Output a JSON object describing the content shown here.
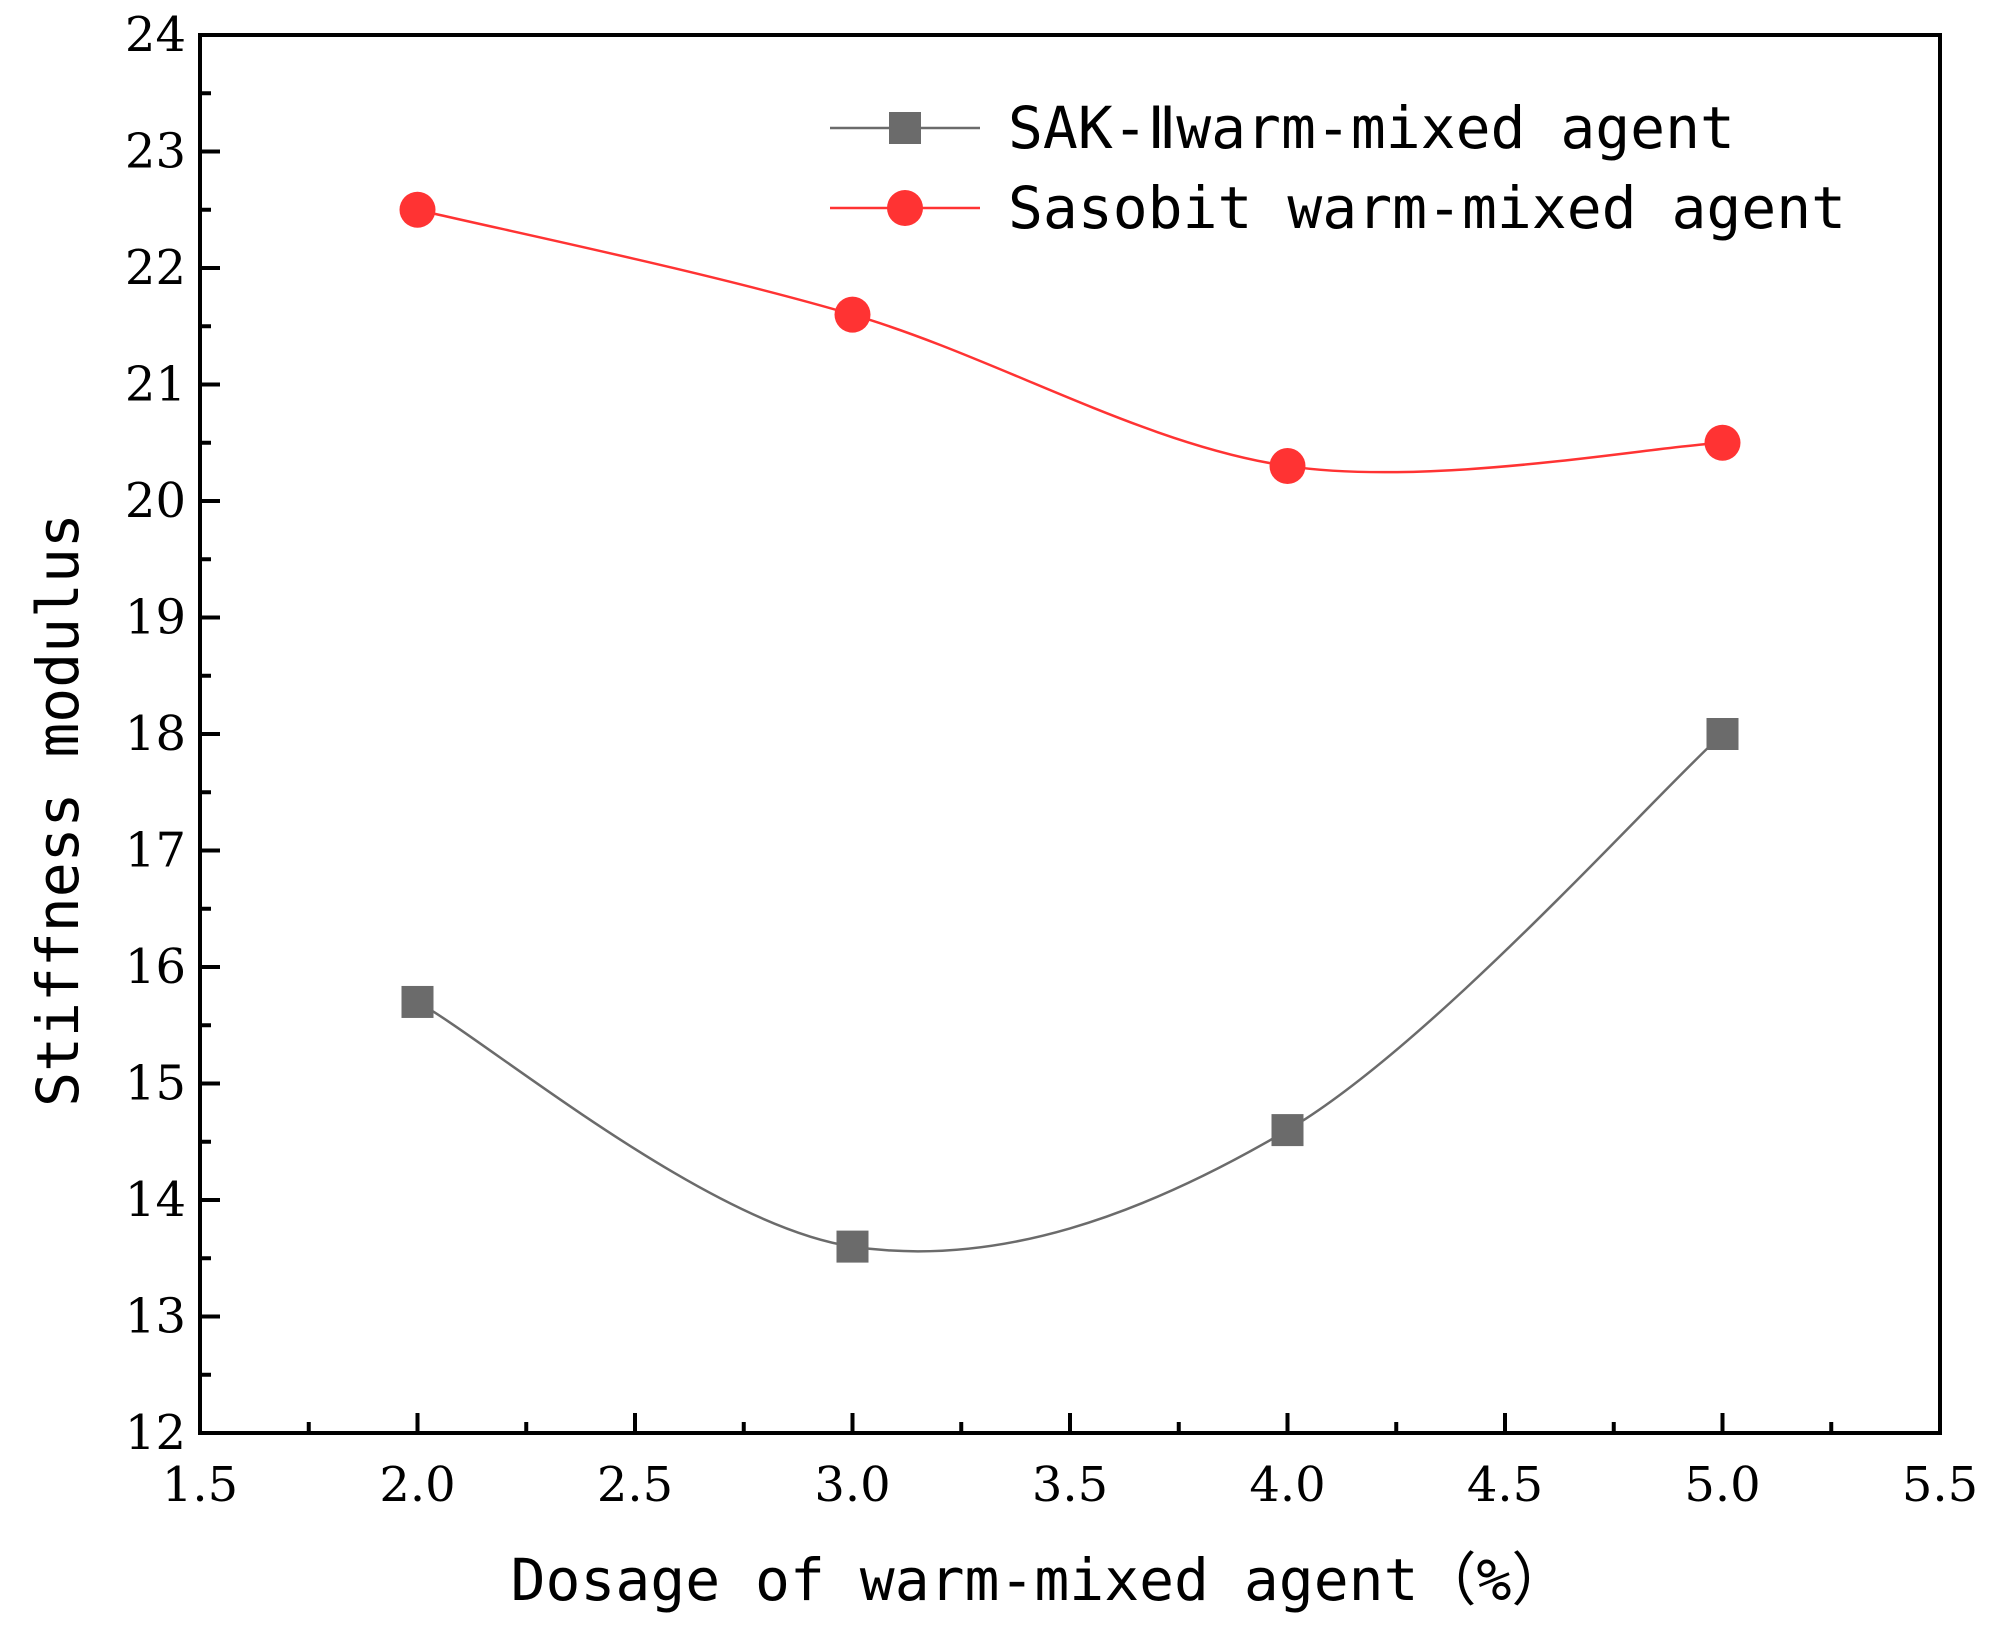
{
  "chart_data": {
    "type": "line",
    "title": "",
    "xlabel": "Dosage of warm-mixed agent（%）",
    "ylabel": "Stiffness modulus",
    "xlim": [
      1.5,
      5.5
    ],
    "ylim": [
      12,
      24
    ],
    "xticks": [
      "1.5",
      "2.0",
      "2.5",
      "3.0",
      "3.5",
      "4.0",
      "4.5",
      "5.0",
      "5.5"
    ],
    "yticks": [
      "12",
      "13",
      "14",
      "15",
      "16",
      "17",
      "18",
      "19",
      "20",
      "21",
      "22",
      "23",
      "24"
    ],
    "grid": false,
    "legend_position": "top-right",
    "x": [
      2.0,
      3.0,
      4.0,
      5.0
    ],
    "series": [
      {
        "name": "SAK-Ⅱwarm-mixed agent",
        "values": [
          15.7,
          13.6,
          14.6,
          18.0
        ],
        "color": "#6b6b6b",
        "marker": "square"
      },
      {
        "name": "Sasobit warm-mixed agent",
        "values": [
          22.5,
          21.6,
          20.3,
          20.5
        ],
        "color": "#ff3333",
        "marker": "circle"
      }
    ]
  }
}
